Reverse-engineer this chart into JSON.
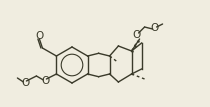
{
  "bg_color": "#f0ede0",
  "line_color": "#3a3a2a",
  "atom_colors": {
    "O": "#3a3a2a",
    "C": "#3a3a2a"
  },
  "figsize": [
    2.1,
    1.07
  ],
  "dpi": 100,
  "line_width": 1.0,
  "font_size": 7.5
}
